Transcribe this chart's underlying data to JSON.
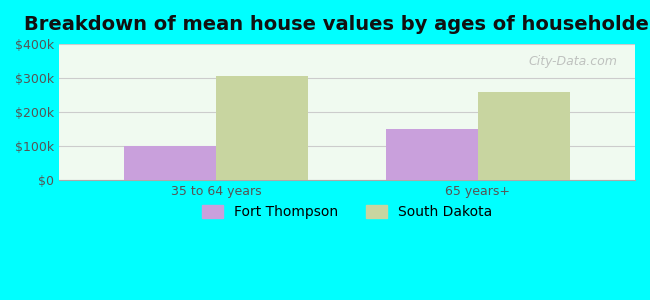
{
  "title": "Breakdown of mean house values by ages of householders",
  "categories": [
    "35 to 64 years",
    "65 years+"
  ],
  "series": {
    "Fort Thompson": [
      100000,
      150000
    ],
    "South Dakota": [
      305000,
      260000
    ]
  },
  "bar_colors": {
    "Fort Thompson": "#c9a0dc",
    "South Dakota": "#c8d5a0"
  },
  "ylim": [
    0,
    400000
  ],
  "yticks": [
    0,
    100000,
    200000,
    300000,
    400000
  ],
  "ytick_labels": [
    "$0",
    "$100k",
    "$200k",
    "$300k",
    "$400k"
  ],
  "background_color": "#00ffff",
  "plot_bg_color": "#f0faf0",
  "grid_color": "#cccccc",
  "bar_width": 0.35,
  "legend_labels": [
    "Fort Thompson",
    "South Dakota"
  ],
  "watermark": "City-Data.com",
  "title_fontsize": 14,
  "tick_fontsize": 9,
  "legend_fontsize": 10
}
